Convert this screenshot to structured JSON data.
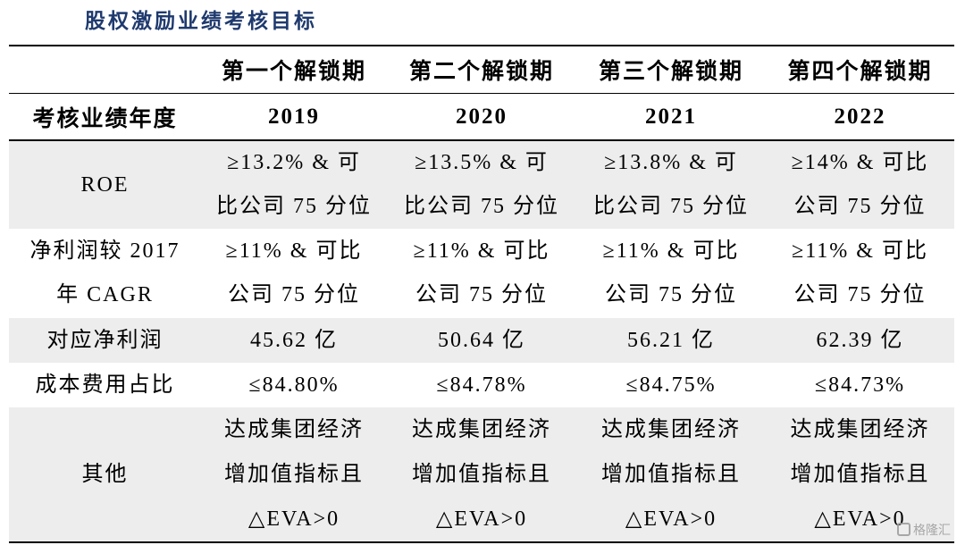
{
  "title": "股权激励业绩考核目标",
  "table": {
    "periods": [
      "第一个解锁期",
      "第二个解锁期",
      "第三个解锁期",
      "第四个解锁期"
    ],
    "year_label": "考核业绩年度",
    "years": [
      "2019",
      "2020",
      "2021",
      "2022"
    ],
    "rows": [
      {
        "label": [
          "ROE"
        ],
        "cells": [
          [
            "≥13.2% & 可",
            "比公司 75 分位"
          ],
          [
            "≥13.5% & 可",
            "比公司 75 分位"
          ],
          [
            "≥13.8% & 可",
            "比公司 75 分位"
          ],
          [
            "≥14% & 可比",
            "公司 75 分位"
          ]
        ]
      },
      {
        "label": [
          "净利润较 2017",
          "年 CAGR"
        ],
        "cells": [
          [
            "≥11% & 可比",
            "公司 75 分位"
          ],
          [
            "≥11% & 可比",
            "公司 75 分位"
          ],
          [
            "≥11% & 可比",
            "公司 75 分位"
          ],
          [
            "≥11% & 可比",
            "公司 75 分位"
          ]
        ]
      },
      {
        "label": [
          "对应净利润"
        ],
        "cells": [
          [
            "45.62 亿"
          ],
          [
            "50.64 亿"
          ],
          [
            "56.21 亿"
          ],
          [
            "62.39 亿"
          ]
        ]
      },
      {
        "label": [
          "成本费用占比"
        ],
        "cells": [
          [
            "≤84.80%"
          ],
          [
            "≤84.78%"
          ],
          [
            "≤84.75%"
          ],
          [
            "≤84.73%"
          ]
        ]
      },
      {
        "label": [
          "其他"
        ],
        "cells": [
          [
            "达成集团经济",
            "增加值指标且",
            "△EVA>0"
          ],
          [
            "达成集团经济",
            "增加值指标且",
            "△EVA>0"
          ],
          [
            "达成集团经济",
            "增加值指标且",
            "△EVA>0"
          ],
          [
            "达成集团经济",
            "增加值指标且",
            "△EVA>0"
          ]
        ]
      }
    ]
  },
  "watermark": {
    "text": "格隆汇",
    "icon": "glh-logo-icon"
  },
  "colors": {
    "title": "#1F3A6E",
    "row_shade": "#EDEDED",
    "rule": "#000000",
    "watermark": "#9A9A9A"
  }
}
